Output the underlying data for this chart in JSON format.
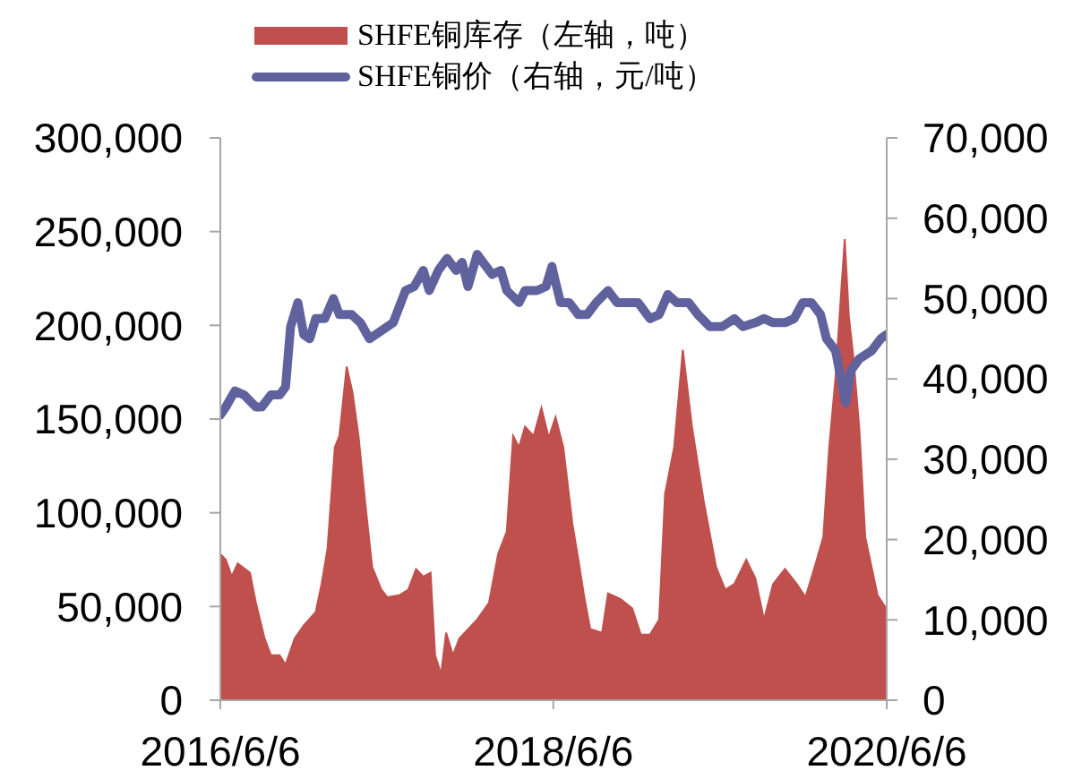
{
  "chart_data": {
    "type": "area",
    "xlim": [
      "2016-06-06",
      "2020-06-06"
    ],
    "xticks": [
      {
        "value": "2016-06-06",
        "label": "2016/6/6"
      },
      {
        "value": "2018-06-06",
        "label": "2018/6/6"
      },
      {
        "value": "2020-06-06",
        "label": "2020/6/6"
      }
    ],
    "ylim": [
      0,
      300000
    ],
    "yticks": [
      0,
      {
        "value": 50000,
        "label": "50,000"
      },
      {
        "value": 100000,
        "label": "100,000"
      },
      {
        "value": 150000,
        "label": "150,000"
      },
      {
        "value": 200000,
        "label": "200,000"
      },
      {
        "value": 250000,
        "label": "250,000"
      },
      {
        "value": 300000,
        "label": "300,000"
      }
    ],
    "y2lim": [
      0,
      70000
    ],
    "y2ticks": [
      0,
      {
        "value": 10000,
        "label": "10,000"
      },
      {
        "value": 20000,
        "label": "20,000"
      },
      {
        "value": 30000,
        "label": "30,000"
      },
      {
        "value": 40000,
        "label": "40,000"
      },
      {
        "value": 50000,
        "label": "50,000"
      },
      {
        "value": 60000,
        "label": "60,000"
      },
      {
        "value": 70000,
        "label": "70,000"
      }
    ],
    "series": [
      {
        "name": "SHFE铜库存（左轴，吨）",
        "color": "#c0504d",
        "x": [
          "2016-06-06",
          "2016-06-18",
          "2016-07-01",
          "2016-07-14",
          "2016-08-10",
          "2016-08-23",
          "2016-09-11",
          "2016-09-25",
          "2016-10-14",
          "2016-10-27",
          "2016-11-16",
          "2016-12-06",
          "2017-01-01",
          "2017-01-14",
          "2017-01-27",
          "2017-02-12",
          "2017-02-22",
          "2017-03-10",
          "2017-03-23",
          "2017-04-05",
          "2017-04-22",
          "2017-05-05",
          "2017-05-25",
          "2017-06-07",
          "2017-07-03",
          "2017-07-23",
          "2017-08-09",
          "2017-08-25",
          "2017-09-10",
          "2017-09-20",
          "2017-10-03",
          "2017-10-14",
          "2017-10-29",
          "2017-11-12",
          "2017-12-21",
          "2018-01-16",
          "2018-02-05",
          "2018-02-24",
          "2018-03-10",
          "2018-03-23",
          "2018-04-05",
          "2018-04-24",
          "2018-05-11",
          "2018-05-27",
          "2018-06-11",
          "2018-06-28",
          "2018-07-18",
          "2018-07-31",
          "2018-08-13",
          "2018-08-26",
          "2018-09-21",
          "2018-10-04",
          "2018-10-31",
          "2018-11-26",
          "2018-12-15",
          "2019-01-04",
          "2019-01-24",
          "2019-02-06",
          "2019-02-26",
          "2019-03-17",
          "2019-04-06",
          "2019-05-02",
          "2019-05-29",
          "2019-06-18",
          "2019-07-08",
          "2019-08-03",
          "2019-08-23",
          "2019-09-11",
          "2019-10-01",
          "2019-10-27",
          "2019-11-22",
          "2019-12-11",
          "2019-12-31",
          "2020-01-19",
          "2020-02-01",
          "2020-02-15",
          "2020-02-28",
          "2020-03-06",
          "2020-03-15",
          "2020-03-25",
          "2020-04-07",
          "2020-04-20",
          "2020-05-04",
          "2020-05-17",
          "2020-06-05"
        ],
        "values": [
          78000,
          75000,
          66000,
          73000,
          68000,
          52000,
          33000,
          24000,
          24000,
          19000,
          33000,
          40000,
          47000,
          62000,
          81000,
          135000,
          141000,
          178000,
          164000,
          141000,
          100000,
          71000,
          59000,
          55000,
          56000,
          59000,
          70000,
          66000,
          68000,
          24000,
          14000,
          36000,
          24000,
          33000,
          43000,
          52000,
          78000,
          90000,
          141000,
          135000,
          146000,
          141000,
          156000,
          140000,
          151000,
          135000,
          94000,
          75000,
          55000,
          38000,
          36000,
          57000,
          54000,
          49000,
          35000,
          35000,
          43000,
          110000,
          135000,
          187000,
          146000,
          106000,
          71000,
          59000,
          62000,
          75000,
          65000,
          43000,
          62000,
          70000,
          62000,
          55000,
          71000,
          87000,
          135000,
          173000,
          221000,
          246000,
          205000,
          183000,
          145000,
          87000,
          71000,
          56000,
          49000
        ]
      },
      {
        "name": "SHFE铜价（右轴，元/吨）",
        "color": "#60629e",
        "type": "line",
        "axis": "y2",
        "x": [
          "2016-06-06",
          "2016-06-18",
          "2016-07-08",
          "2016-07-28",
          "2016-08-23",
          "2016-09-05",
          "2016-09-25",
          "2016-10-14",
          "2016-10-27",
          "2016-11-07",
          "2016-11-23",
          "2016-12-06",
          "2016-12-19",
          "2017-01-01",
          "2017-01-21",
          "2017-02-09",
          "2017-02-22",
          "2017-03-21",
          "2017-04-09",
          "2017-04-29",
          "2017-05-25",
          "2017-06-20",
          "2017-07-17",
          "2017-08-05",
          "2017-08-25",
          "2017-09-07",
          "2017-09-27",
          "2017-10-16",
          "2017-11-05",
          "2017-11-18",
          "2017-12-01",
          "2017-12-21",
          "2018-01-03",
          "2018-01-23",
          "2018-02-11",
          "2018-02-24",
          "2018-03-23",
          "2018-04-05",
          "2018-05-01",
          "2018-05-21",
          "2018-06-03",
          "2018-06-09",
          "2018-06-22",
          "2018-07-11",
          "2018-07-31",
          "2018-08-19",
          "2018-09-08",
          "2018-10-04",
          "2018-10-24",
          "2018-11-13",
          "2018-12-09",
          "2019-01-04",
          "2019-01-24",
          "2019-02-12",
          "2019-03-04",
          "2019-03-30",
          "2019-04-19",
          "2019-05-15",
          "2019-06-11",
          "2019-07-08",
          "2019-07-27",
          "2019-08-23",
          "2019-09-11",
          "2019-10-01",
          "2019-10-27",
          "2019-11-16",
          "2019-12-05",
          "2019-12-24",
          "2020-01-13",
          "2020-01-26",
          "2020-02-15",
          "2020-03-08",
          "2020-03-19",
          "2020-04-07",
          "2020-05-04",
          "2020-05-24",
          "2020-06-05"
        ],
        "values": [
          35500,
          36500,
          38500,
          38000,
          36500,
          36500,
          38000,
          38000,
          39000,
          46500,
          49500,
          45500,
          45000,
          47500,
          47500,
          50000,
          48000,
          48000,
          47000,
          45000,
          46000,
          47000,
          51000,
          51500,
          53500,
          51000,
          53500,
          55000,
          53500,
          54500,
          51500,
          55500,
          54500,
          53000,
          53500,
          51000,
          49500,
          51000,
          51000,
          51500,
          54000,
          52500,
          49500,
          49500,
          48000,
          48000,
          49500,
          51000,
          49500,
          49500,
          49500,
          47500,
          48000,
          50500,
          49500,
          49500,
          48000,
          46500,
          46500,
          47500,
          46500,
          47000,
          47500,
          47000,
          47000,
          47500,
          49500,
          49500,
          48000,
          45000,
          43500,
          37000,
          41000,
          42500,
          43500,
          45000,
          45500
        ]
      }
    ],
    "legend": "top",
    "marker": "none",
    "line_style": "solid"
  }
}
